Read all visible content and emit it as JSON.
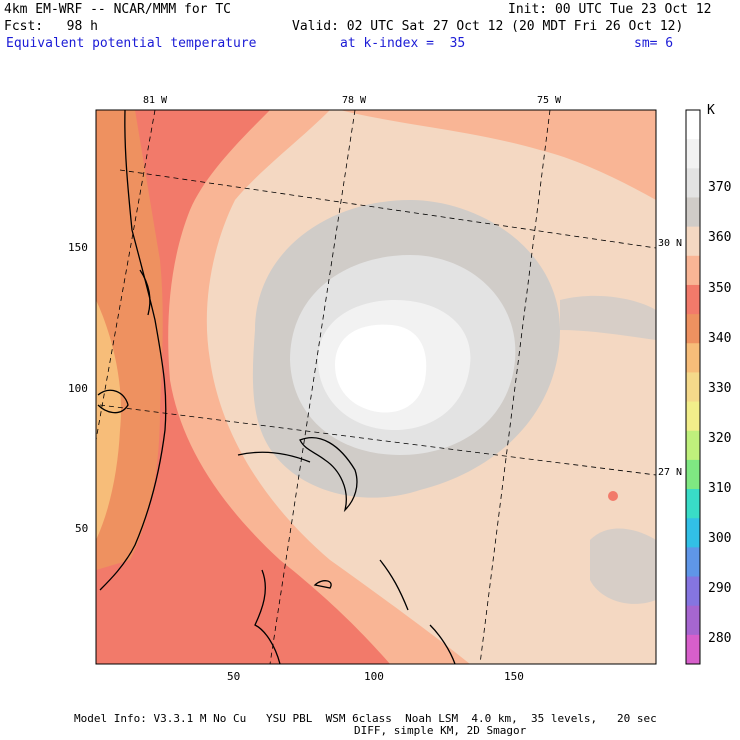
{
  "header": {
    "model": "4km EM-WRF -- NCAR/MMM for TC",
    "init": "Init: 00 UTC Tue 23 Oct 12",
    "fcst": "Fcst:   98 h",
    "valid": "Valid: 02 UTC Sat 27 Oct 12 (20 MDT Fri 26 Oct 12)",
    "field": "Equivalent potential temperature",
    "kindex": "at k-index =  35",
    "sm": "sm= 6"
  },
  "map": {
    "lon_labels": [
      "81 W",
      "78 W",
      "75 W"
    ],
    "lat_labels": [
      "30 N",
      "27 N"
    ],
    "grid_x_ticks": [
      "50",
      "100",
      "150"
    ],
    "grid_y_ticks": [
      "150",
      "100",
      "50"
    ]
  },
  "colorbar": {
    "unit": "K",
    "labels": [
      "370",
      "360",
      "350",
      "340",
      "330",
      "320",
      "310",
      "300",
      "290",
      "280"
    ],
    "colors": [
      "#ffffff",
      "#f2f2f2",
      "#e3e3e3",
      "#d0ccc8",
      "#f4d8c2",
      "#f9b595",
      "#f27a6a",
      "#ee9160",
      "#f7bd79",
      "#f5d98a",
      "#f2ee8a",
      "#bff07c",
      "#7fe882",
      "#39dcc7",
      "#32c0e6",
      "#5f96e8",
      "#8575e0",
      "#a666d0",
      "#d75fcb"
    ]
  },
  "footer": {
    "line1": "Model Info: V3.3.1 M No Cu   YSU PBL  WSM 6class  Noah LSM  4.0 km,  35 levels,   20 sec",
    "line2": "DIFF, simple KM, 2D Smagor"
  }
}
